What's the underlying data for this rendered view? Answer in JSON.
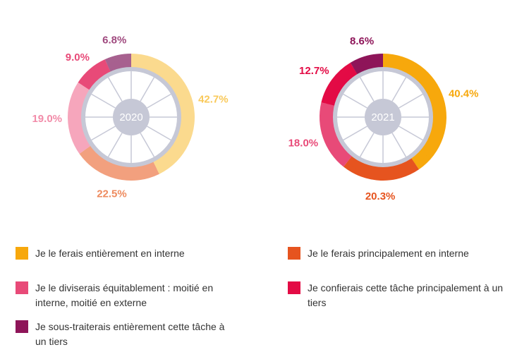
{
  "colors": {
    "interne_full": "#F7A80C",
    "interne_principal": "#E6541F",
    "equitable": "#E84A78",
    "tiers_principal": "#E30B45",
    "sous_traite": "#8E1559",
    "wheel": "#C6C8D6"
  },
  "chart_data": [
    {
      "type": "pie",
      "title": "2020",
      "style": "faded",
      "categories": [
        "Je le ferais entièrement en interne",
        "Je le ferais principalement en interne",
        "Je le diviserais équitablement : moitié en interne, moitié en externe",
        "Je confierais cette tâche principalement à un tiers",
        "Je sous-traiterais entièrement cette tâche à un tiers"
      ],
      "values": [
        42.7,
        22.5,
        19.0,
        9.0,
        6.8
      ],
      "labels": [
        "42.7%",
        "22.5%",
        "19.0%",
        "9.0%",
        "6.8%"
      ],
      "colors": [
        "#FBDA8E",
        "#F2A07E",
        "#F6A6BC",
        "#E84A78",
        "#A7618F"
      ],
      "label_colors": [
        "#F9C95A",
        "#EE8B5F",
        "#F28CA9",
        "#E84A78",
        "#A04A7F"
      ]
    },
    {
      "type": "pie",
      "title": "2021",
      "style": "solid",
      "categories": [
        "Je le ferais entièrement en interne",
        "Je le ferais principalement en interne",
        "Je le diviserais équitablement : moitié en interne, moitié en externe",
        "Je confierais cette tâche principalement à un tiers",
        "Je sous-traiterais entièrement cette tâche à un tiers"
      ],
      "values": [
        40.4,
        20.3,
        18.0,
        12.7,
        8.6
      ],
      "labels": [
        "40.4%",
        "20.3%",
        "18.0%",
        "12.7%",
        "8.6%"
      ],
      "colors": [
        "#F7A80C",
        "#E6541F",
        "#E84A78",
        "#E30B45",
        "#8E1559"
      ],
      "label_colors": [
        "#F7A80C",
        "#E6541F",
        "#E84A78",
        "#E30B45",
        "#8E1559"
      ]
    }
  ],
  "legend": [
    {
      "label": "Je le ferais entièrement en interne",
      "color": "#F7A80C"
    },
    {
      "label": "Je le ferais principalement en interne",
      "color": "#E6541F"
    },
    {
      "label": "Je le diviserais équitablement : moitié en interne, moitié en externe",
      "color": "#E84A78"
    },
    {
      "label": "Je confierais cette tâche principalement à un tiers",
      "color": "#E30B45"
    },
    {
      "label": "Je sous-traiterais entièrement cette tâche à un tiers",
      "color": "#8E1559"
    }
  ]
}
